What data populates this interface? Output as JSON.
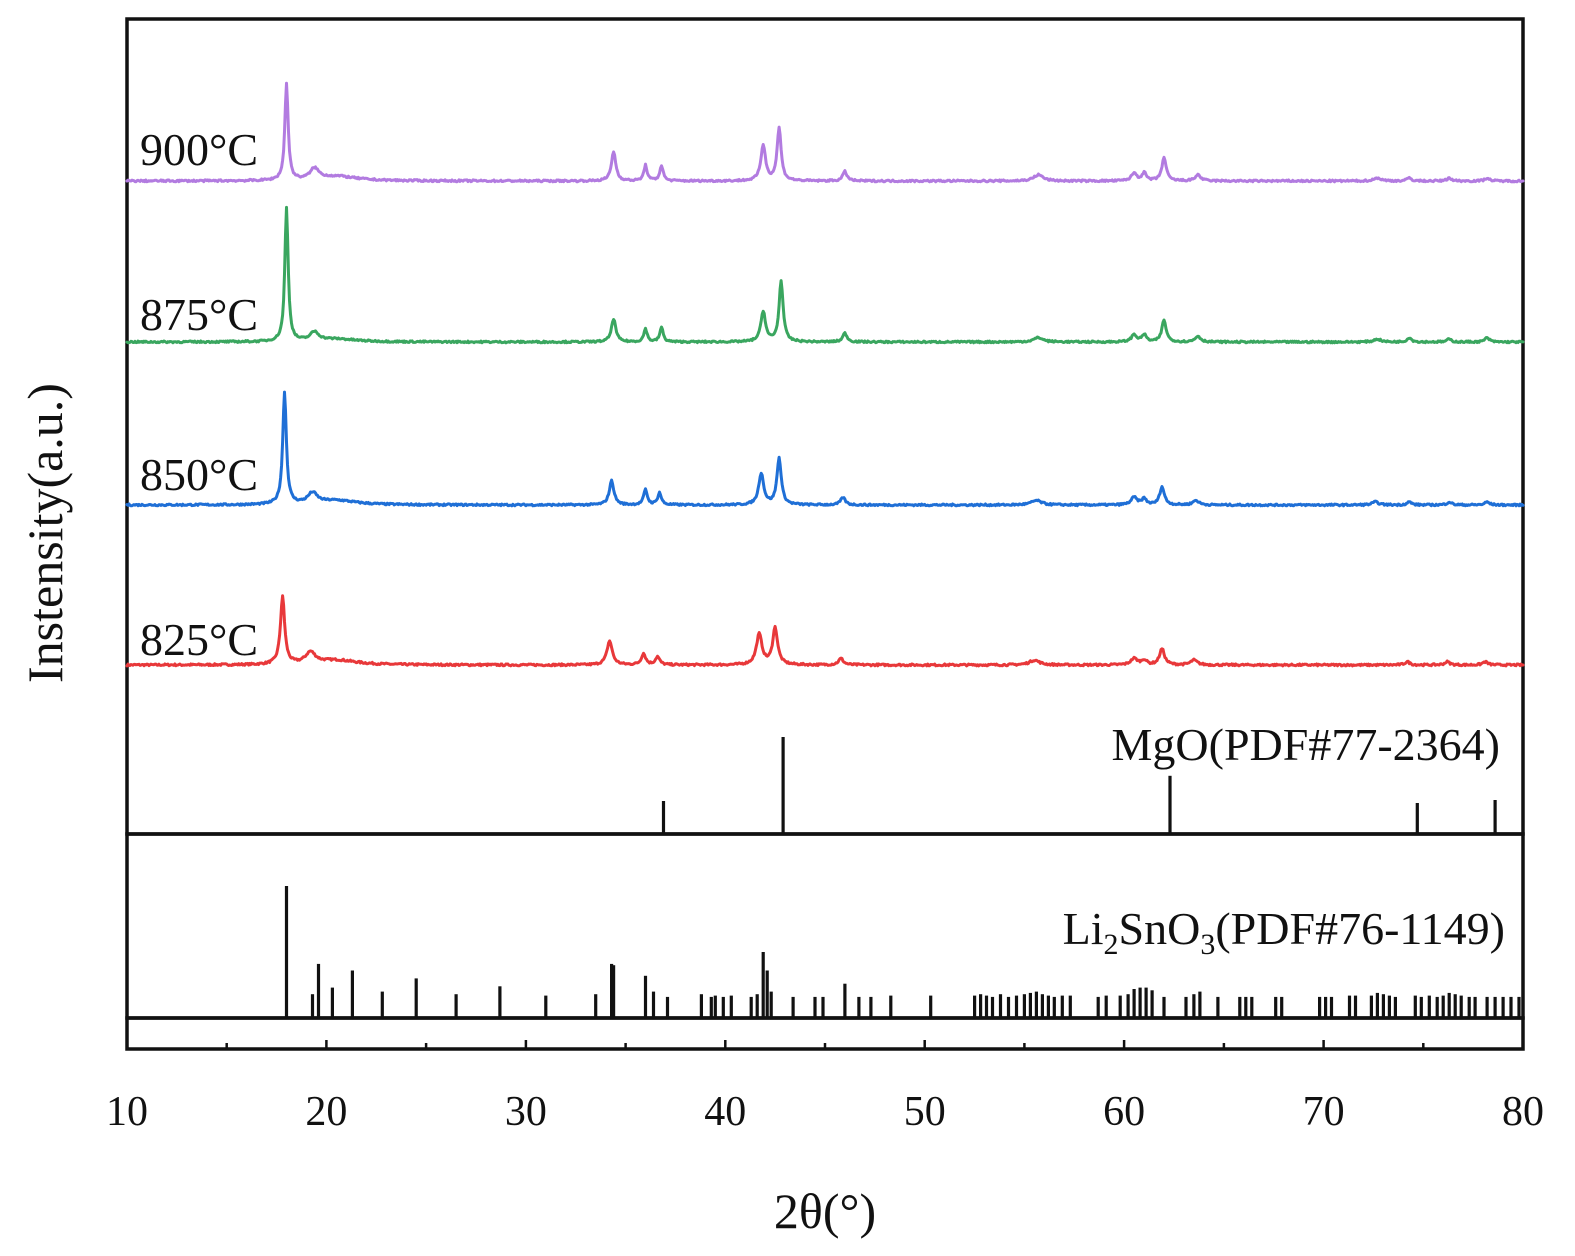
{
  "chart_data": {
    "type": "line",
    "xlabel": "2θ(°)",
    "ylabel": "Instensity(a.u.)",
    "xlim": [
      10,
      80
    ],
    "x_ticks": [
      10,
      20,
      30,
      40,
      50,
      60,
      70,
      80
    ],
    "grid": false,
    "y_tick_labels": false,
    "series": [
      {
        "name": "825°C",
        "color": "#e8383a",
        "peaks": [
          {
            "x": 17.8,
            "h": 0.42,
            "w": 0.13
          },
          {
            "x": 19.2,
            "h": 0.07,
            "w": 0.3
          },
          {
            "x": 20.5,
            "h": 0.03,
            "w": 1.2
          },
          {
            "x": 34.2,
            "h": 0.15,
            "w": 0.16
          },
          {
            "x": 35.9,
            "h": 0.07,
            "w": 0.13
          },
          {
            "x": 36.6,
            "h": 0.05,
            "w": 0.13
          },
          {
            "x": 41.7,
            "h": 0.19,
            "w": 0.17
          },
          {
            "x": 42.5,
            "h": 0.23,
            "w": 0.15
          },
          {
            "x": 45.8,
            "h": 0.04,
            "w": 0.15
          },
          {
            "x": 55.5,
            "h": 0.03,
            "w": 0.3
          },
          {
            "x": 60.5,
            "h": 0.04,
            "w": 0.2
          },
          {
            "x": 61.0,
            "h": 0.03,
            "w": 0.15
          },
          {
            "x": 61.9,
            "h": 0.1,
            "w": 0.15
          },
          {
            "x": 63.5,
            "h": 0.03,
            "w": 0.2
          },
          {
            "x": 74.2,
            "h": 0.02,
            "w": 0.15
          },
          {
            "x": 76.2,
            "h": 0.02,
            "w": 0.15
          },
          {
            "x": 78.1,
            "h": 0.02,
            "w": 0.15
          }
        ]
      },
      {
        "name": "850°C",
        "color": "#1f6fd6",
        "peaks": [
          {
            "x": 17.9,
            "h": 0.75,
            "w": 0.11
          },
          {
            "x": 19.3,
            "h": 0.07,
            "w": 0.28
          },
          {
            "x": 20.5,
            "h": 0.03,
            "w": 1.2
          },
          {
            "x": 34.3,
            "h": 0.16,
            "w": 0.14
          },
          {
            "x": 36.0,
            "h": 0.1,
            "w": 0.11
          },
          {
            "x": 36.7,
            "h": 0.08,
            "w": 0.11
          },
          {
            "x": 41.8,
            "h": 0.21,
            "w": 0.15
          },
          {
            "x": 42.7,
            "h": 0.31,
            "w": 0.13
          },
          {
            "x": 45.9,
            "h": 0.05,
            "w": 0.14
          },
          {
            "x": 55.6,
            "h": 0.03,
            "w": 0.3
          },
          {
            "x": 60.5,
            "h": 0.05,
            "w": 0.18
          },
          {
            "x": 61.0,
            "h": 0.04,
            "w": 0.14
          },
          {
            "x": 61.9,
            "h": 0.12,
            "w": 0.14
          },
          {
            "x": 63.6,
            "h": 0.03,
            "w": 0.18
          },
          {
            "x": 72.6,
            "h": 0.02,
            "w": 0.2
          },
          {
            "x": 74.3,
            "h": 0.02,
            "w": 0.14
          },
          {
            "x": 76.3,
            "h": 0.02,
            "w": 0.14
          },
          {
            "x": 78.2,
            "h": 0.02,
            "w": 0.14
          }
        ]
      },
      {
        "name": "875°C",
        "color": "#3aa65f",
        "peaks": [
          {
            "x": 18.0,
            "h": 0.92,
            "w": 0.1
          },
          {
            "x": 19.4,
            "h": 0.06,
            "w": 0.26
          },
          {
            "x": 20.5,
            "h": 0.02,
            "w": 1.2
          },
          {
            "x": 34.4,
            "h": 0.16,
            "w": 0.13
          },
          {
            "x": 36.0,
            "h": 0.09,
            "w": 0.1
          },
          {
            "x": 36.8,
            "h": 0.1,
            "w": 0.1
          },
          {
            "x": 41.9,
            "h": 0.21,
            "w": 0.14
          },
          {
            "x": 42.8,
            "h": 0.42,
            "w": 0.12
          },
          {
            "x": 46.0,
            "h": 0.06,
            "w": 0.13
          },
          {
            "x": 55.7,
            "h": 0.03,
            "w": 0.28
          },
          {
            "x": 60.5,
            "h": 0.05,
            "w": 0.16
          },
          {
            "x": 61.0,
            "h": 0.05,
            "w": 0.13
          },
          {
            "x": 62.0,
            "h": 0.15,
            "w": 0.13
          },
          {
            "x": 63.7,
            "h": 0.04,
            "w": 0.16
          },
          {
            "x": 72.7,
            "h": 0.02,
            "w": 0.2
          },
          {
            "x": 74.3,
            "h": 0.03,
            "w": 0.13
          },
          {
            "x": 76.3,
            "h": 0.02,
            "w": 0.13
          },
          {
            "x": 78.2,
            "h": 0.03,
            "w": 0.13
          }
        ]
      },
      {
        "name": "900°C",
        "color": "#b27be0",
        "peaks": [
          {
            "x": 18.0,
            "h": 0.62,
            "w": 0.1
          },
          {
            "x": 19.4,
            "h": 0.07,
            "w": 0.26
          },
          {
            "x": 20.5,
            "h": 0.03,
            "w": 1.2
          },
          {
            "x": 34.4,
            "h": 0.19,
            "w": 0.13
          },
          {
            "x": 36.0,
            "h": 0.1,
            "w": 0.1
          },
          {
            "x": 36.8,
            "h": 0.1,
            "w": 0.1
          },
          {
            "x": 41.9,
            "h": 0.23,
            "w": 0.14
          },
          {
            "x": 42.7,
            "h": 0.34,
            "w": 0.12
          },
          {
            "x": 46.0,
            "h": 0.06,
            "w": 0.13
          },
          {
            "x": 55.7,
            "h": 0.04,
            "w": 0.28
          },
          {
            "x": 60.5,
            "h": 0.05,
            "w": 0.16
          },
          {
            "x": 61.0,
            "h": 0.05,
            "w": 0.13
          },
          {
            "x": 62.0,
            "h": 0.15,
            "w": 0.13
          },
          {
            "x": 63.7,
            "h": 0.04,
            "w": 0.16
          },
          {
            "x": 72.7,
            "h": 0.02,
            "w": 0.2
          },
          {
            "x": 74.3,
            "h": 0.02,
            "w": 0.13
          },
          {
            "x": 76.3,
            "h": 0.02,
            "w": 0.13
          },
          {
            "x": 78.2,
            "h": 0.02,
            "w": 0.13
          }
        ]
      }
    ],
    "references": [
      {
        "name": "MgO(PDF#77-2364)",
        "lines": [
          {
            "x": 36.9,
            "i": 0.34
          },
          {
            "x": 42.9,
            "i": 1.0
          },
          {
            "x": 62.3,
            "i": 0.6
          },
          {
            "x": 74.7,
            "i": 0.32
          },
          {
            "x": 78.6,
            "i": 0.35
          }
        ]
      },
      {
        "name_parts": [
          "Li",
          "2",
          "SnO",
          "3",
          "(PDF#76-1149)"
        ],
        "lines": [
          {
            "x": 18.0,
            "i": 1.0
          },
          {
            "x": 19.3,
            "i": 0.18
          },
          {
            "x": 19.6,
            "i": 0.41
          },
          {
            "x": 20.3,
            "i": 0.23
          },
          {
            "x": 21.3,
            "i": 0.36
          },
          {
            "x": 22.8,
            "i": 0.2
          },
          {
            "x": 24.5,
            "i": 0.3
          },
          {
            "x": 26.5,
            "i": 0.18
          },
          {
            "x": 28.7,
            "i": 0.24
          },
          {
            "x": 31.0,
            "i": 0.17
          },
          {
            "x": 33.5,
            "i": 0.18
          },
          {
            "x": 34.3,
            "i": 0.41
          },
          {
            "x": 34.4,
            "i": 0.4
          },
          {
            "x": 36.0,
            "i": 0.32
          },
          {
            "x": 36.4,
            "i": 0.2
          },
          {
            "x": 37.1,
            "i": 0.16
          },
          {
            "x": 38.8,
            "i": 0.18
          },
          {
            "x": 39.3,
            "i": 0.16
          },
          {
            "x": 39.5,
            "i": 0.17
          },
          {
            "x": 39.9,
            "i": 0.16
          },
          {
            "x": 40.3,
            "i": 0.17
          },
          {
            "x": 41.3,
            "i": 0.16
          },
          {
            "x": 41.6,
            "i": 0.18
          },
          {
            "x": 41.9,
            "i": 0.5
          },
          {
            "x": 42.1,
            "i": 0.36
          },
          {
            "x": 42.3,
            "i": 0.2
          },
          {
            "x": 43.4,
            "i": 0.16
          },
          {
            "x": 44.5,
            "i": 0.16
          },
          {
            "x": 44.9,
            "i": 0.16
          },
          {
            "x": 46.0,
            "i": 0.26
          },
          {
            "x": 46.7,
            "i": 0.16
          },
          {
            "x": 47.3,
            "i": 0.16
          },
          {
            "x": 48.3,
            "i": 0.17
          },
          {
            "x": 50.3,
            "i": 0.17
          },
          {
            "x": 52.5,
            "i": 0.17
          },
          {
            "x": 52.8,
            "i": 0.18
          },
          {
            "x": 53.1,
            "i": 0.17
          },
          {
            "x": 53.4,
            "i": 0.16
          },
          {
            "x": 53.8,
            "i": 0.18
          },
          {
            "x": 54.2,
            "i": 0.16
          },
          {
            "x": 54.6,
            "i": 0.17
          },
          {
            "x": 55.0,
            "i": 0.18
          },
          {
            "x": 55.3,
            "i": 0.19
          },
          {
            "x": 55.6,
            "i": 0.2
          },
          {
            "x": 55.9,
            "i": 0.18
          },
          {
            "x": 56.2,
            "i": 0.17
          },
          {
            "x": 56.5,
            "i": 0.16
          },
          {
            "x": 56.9,
            "i": 0.17
          },
          {
            "x": 57.3,
            "i": 0.17
          },
          {
            "x": 58.7,
            "i": 0.16
          },
          {
            "x": 59.1,
            "i": 0.17
          },
          {
            "x": 59.8,
            "i": 0.17
          },
          {
            "x": 60.2,
            "i": 0.18
          },
          {
            "x": 60.5,
            "i": 0.22
          },
          {
            "x": 60.8,
            "i": 0.23
          },
          {
            "x": 61.1,
            "i": 0.23
          },
          {
            "x": 61.4,
            "i": 0.21
          },
          {
            "x": 62.0,
            "i": 0.16
          },
          {
            "x": 63.1,
            "i": 0.16
          },
          {
            "x": 63.5,
            "i": 0.18
          },
          {
            "x": 63.8,
            "i": 0.2
          },
          {
            "x": 64.7,
            "i": 0.16
          },
          {
            "x": 65.8,
            "i": 0.16
          },
          {
            "x": 66.1,
            "i": 0.16
          },
          {
            "x": 66.4,
            "i": 0.16
          },
          {
            "x": 67.6,
            "i": 0.16
          },
          {
            "x": 67.9,
            "i": 0.16
          },
          {
            "x": 69.8,
            "i": 0.16
          },
          {
            "x": 70.1,
            "i": 0.16
          },
          {
            "x": 70.4,
            "i": 0.16
          },
          {
            "x": 71.3,
            "i": 0.17
          },
          {
            "x": 71.6,
            "i": 0.17
          },
          {
            "x": 72.4,
            "i": 0.17
          },
          {
            "x": 72.7,
            "i": 0.19
          },
          {
            "x": 73.0,
            "i": 0.18
          },
          {
            "x": 73.3,
            "i": 0.17
          },
          {
            "x": 73.6,
            "i": 0.16
          },
          {
            "x": 74.6,
            "i": 0.17
          },
          {
            "x": 74.9,
            "i": 0.16
          },
          {
            "x": 75.3,
            "i": 0.17
          },
          {
            "x": 75.7,
            "i": 0.16
          },
          {
            "x": 76.0,
            "i": 0.17
          },
          {
            "x": 76.3,
            "i": 0.19
          },
          {
            "x": 76.6,
            "i": 0.18
          },
          {
            "x": 76.9,
            "i": 0.17
          },
          {
            "x": 77.3,
            "i": 0.16
          },
          {
            "x": 77.6,
            "i": 0.16
          },
          {
            "x": 78.2,
            "i": 0.16
          },
          {
            "x": 78.6,
            "i": 0.16
          },
          {
            "x": 79.0,
            "i": 0.16
          },
          {
            "x": 79.4,
            "i": 0.16
          },
          {
            "x": 79.8,
            "i": 0.16
          }
        ]
      }
    ]
  }
}
